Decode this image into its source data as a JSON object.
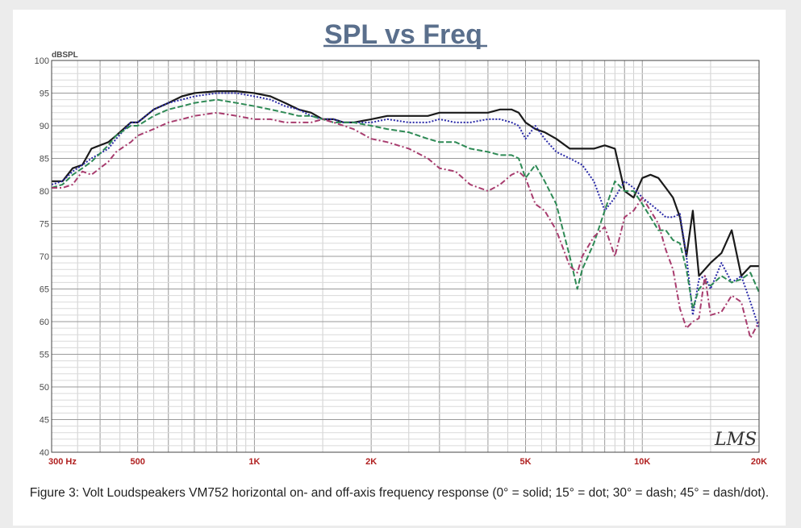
{
  "caption": "Figure 3: Volt Loudspeakers VM752 horizontal on- and off-axis frequency response (0° = solid; 15° = dot; 30° = dash; 45° = dash/dot).",
  "logo": "LMS",
  "chart_data": {
    "type": "line",
    "title": "SPL vs Freq",
    "ylabel": "dBSPL",
    "xlabel": "",
    "x_scale": "log",
    "xlim": [
      300,
      20000
    ],
    "ylim": [
      40,
      100
    ],
    "grid": true,
    "y_ticks": [
      40,
      45,
      50,
      55,
      60,
      65,
      70,
      75,
      80,
      85,
      90,
      95,
      100
    ],
    "x_tick_labels": [
      {
        "value": 300,
        "label": "300 Hz"
      },
      {
        "value": 500,
        "label": "500"
      },
      {
        "value": 1000,
        "label": "1K"
      },
      {
        "value": 2000,
        "label": "2K"
      },
      {
        "value": 5000,
        "label": "5K"
      },
      {
        "value": 10000,
        "label": "10K"
      },
      {
        "value": 20000,
        "label": "20K"
      }
    ],
    "series": [
      {
        "name": "0°",
        "color": "#1a1a1a",
        "style": "solid",
        "points": [
          [
            300,
            81.5
          ],
          [
            320,
            81.5
          ],
          [
            340,
            83.5
          ],
          [
            360,
            84
          ],
          [
            380,
            86.5
          ],
          [
            420,
            87.5
          ],
          [
            440,
            88.5
          ],
          [
            480,
            90.5
          ],
          [
            500,
            90.5
          ],
          [
            550,
            92.5
          ],
          [
            600,
            93.5
          ],
          [
            650,
            94.5
          ],
          [
            700,
            95
          ],
          [
            800,
            95.3
          ],
          [
            900,
            95.3
          ],
          [
            1000,
            95
          ],
          [
            1100,
            94.5
          ],
          [
            1200,
            93.5
          ],
          [
            1300,
            92.5
          ],
          [
            1400,
            92
          ],
          [
            1500,
            91
          ],
          [
            1600,
            91
          ],
          [
            1700,
            90.5
          ],
          [
            1800,
            90.5
          ],
          [
            2000,
            91
          ],
          [
            2200,
            91.5
          ],
          [
            2500,
            91.5
          ],
          [
            2800,
            91.5
          ],
          [
            3000,
            92
          ],
          [
            3300,
            92
          ],
          [
            3600,
            92
          ],
          [
            4000,
            92
          ],
          [
            4300,
            92.5
          ],
          [
            4600,
            92.5
          ],
          [
            4800,
            92
          ],
          [
            5000,
            90.5
          ],
          [
            5300,
            89.5
          ],
          [
            5600,
            89
          ],
          [
            6000,
            88
          ],
          [
            6500,
            86.5
          ],
          [
            7000,
            86.5
          ],
          [
            7500,
            86.5
          ],
          [
            8000,
            87
          ],
          [
            8500,
            86.5
          ],
          [
            9000,
            80
          ],
          [
            9500,
            79
          ],
          [
            10000,
            82
          ],
          [
            10500,
            82.5
          ],
          [
            11000,
            82
          ],
          [
            11500,
            80.5
          ],
          [
            12000,
            79
          ],
          [
            12500,
            76
          ],
          [
            13000,
            70
          ],
          [
            13500,
            77
          ],
          [
            14000,
            67
          ],
          [
            15000,
            69
          ],
          [
            16000,
            70.5
          ],
          [
            17000,
            74
          ],
          [
            18000,
            67
          ],
          [
            19000,
            68.5
          ],
          [
            20000,
            68.5
          ]
        ]
      },
      {
        "name": "15°",
        "color": "#2a2aa8",
        "style": "dot",
        "points": [
          [
            300,
            81
          ],
          [
            320,
            81.5
          ],
          [
            340,
            83
          ],
          [
            360,
            84
          ],
          [
            380,
            85
          ],
          [
            420,
            86.5
          ],
          [
            440,
            88
          ],
          [
            480,
            90.5
          ],
          [
            500,
            90.5
          ],
          [
            550,
            92.5
          ],
          [
            600,
            93.5
          ],
          [
            650,
            94
          ],
          [
            700,
            94.5
          ],
          [
            800,
            95
          ],
          [
            900,
            95
          ],
          [
            1000,
            94.5
          ],
          [
            1100,
            94
          ],
          [
            1200,
            93
          ],
          [
            1300,
            92.5
          ],
          [
            1400,
            91.5
          ],
          [
            1500,
            91
          ],
          [
            1600,
            91
          ],
          [
            1700,
            90.5
          ],
          [
            1800,
            90.5
          ],
          [
            2000,
            90.5
          ],
          [
            2200,
            91
          ],
          [
            2500,
            90.5
          ],
          [
            2800,
            90.5
          ],
          [
            3000,
            91
          ],
          [
            3300,
            90.5
          ],
          [
            3600,
            90.5
          ],
          [
            4000,
            91
          ],
          [
            4300,
            91
          ],
          [
            4600,
            90.5
          ],
          [
            4800,
            90
          ],
          [
            5000,
            88
          ],
          [
            5300,
            90
          ],
          [
            5600,
            88
          ],
          [
            6000,
            86
          ],
          [
            6500,
            85
          ],
          [
            7000,
            84
          ],
          [
            7500,
            81.5
          ],
          [
            8000,
            77
          ],
          [
            8500,
            79
          ],
          [
            9000,
            81.5
          ],
          [
            9500,
            80.5
          ],
          [
            10000,
            79
          ],
          [
            10500,
            78
          ],
          [
            11000,
            77
          ],
          [
            11500,
            76
          ],
          [
            12000,
            76
          ],
          [
            12500,
            76.5
          ],
          [
            13000,
            70
          ],
          [
            13500,
            61
          ],
          [
            14000,
            66.5
          ],
          [
            14500,
            67
          ],
          [
            15000,
            65
          ],
          [
            16000,
            69
          ],
          [
            17000,
            66
          ],
          [
            18000,
            67
          ],
          [
            19000,
            63
          ],
          [
            20000,
            59
          ]
        ]
      },
      {
        "name": "30°",
        "color": "#2e8a55",
        "style": "dash",
        "points": [
          [
            300,
            80.5
          ],
          [
            320,
            81
          ],
          [
            340,
            82.5
          ],
          [
            360,
            83.5
          ],
          [
            380,
            84.5
          ],
          [
            420,
            87
          ],
          [
            440,
            88.5
          ],
          [
            480,
            90
          ],
          [
            500,
            90
          ],
          [
            550,
            91.5
          ],
          [
            600,
            92.5
          ],
          [
            650,
            93
          ],
          [
            700,
            93.5
          ],
          [
            800,
            94
          ],
          [
            900,
            93.5
          ],
          [
            1000,
            93
          ],
          [
            1100,
            92.5
          ],
          [
            1200,
            92
          ],
          [
            1300,
            91.5
          ],
          [
            1400,
            91.5
          ],
          [
            1500,
            91
          ],
          [
            1600,
            90.5
          ],
          [
            1700,
            90.5
          ],
          [
            1800,
            90.5
          ],
          [
            2000,
            90
          ],
          [
            2200,
            89.5
          ],
          [
            2500,
            89
          ],
          [
            2800,
            88
          ],
          [
            3000,
            87.5
          ],
          [
            3300,
            87.5
          ],
          [
            3600,
            86.5
          ],
          [
            4000,
            86
          ],
          [
            4300,
            85.5
          ],
          [
            4600,
            85.5
          ],
          [
            4800,
            85
          ],
          [
            5000,
            82
          ],
          [
            5300,
            84
          ],
          [
            5600,
            81.5
          ],
          [
            6000,
            78
          ],
          [
            6500,
            70
          ],
          [
            6800,
            65
          ],
          [
            7000,
            68
          ],
          [
            7500,
            72
          ],
          [
            8000,
            77
          ],
          [
            8500,
            81.5
          ],
          [
            9000,
            80
          ],
          [
            9500,
            80
          ],
          [
            10000,
            78
          ],
          [
            10500,
            76
          ],
          [
            11000,
            74
          ],
          [
            11500,
            74
          ],
          [
            12000,
            72.5
          ],
          [
            12500,
            72
          ],
          [
            13000,
            68
          ],
          [
            13500,
            62
          ],
          [
            14000,
            65
          ],
          [
            14500,
            66
          ],
          [
            15000,
            65.5
          ],
          [
            16000,
            67
          ],
          [
            17000,
            66
          ],
          [
            18000,
            66.5
          ],
          [
            19000,
            67.5
          ],
          [
            20000,
            64.5
          ]
        ]
      },
      {
        "name": "45°",
        "color": "#a83c6e",
        "style": "dashdot",
        "points": [
          [
            300,
            80.5
          ],
          [
            320,
            80.5
          ],
          [
            340,
            81
          ],
          [
            360,
            83
          ],
          [
            380,
            82.5
          ],
          [
            420,
            84.5
          ],
          [
            440,
            86
          ],
          [
            480,
            87.5
          ],
          [
            500,
            88.5
          ],
          [
            550,
            89.5
          ],
          [
            600,
            90.5
          ],
          [
            650,
            91
          ],
          [
            700,
            91.5
          ],
          [
            800,
            92
          ],
          [
            900,
            91.5
          ],
          [
            1000,
            91
          ],
          [
            1100,
            91
          ],
          [
            1200,
            90.5
          ],
          [
            1300,
            90.5
          ],
          [
            1400,
            90.5
          ],
          [
            1500,
            91
          ],
          [
            1600,
            90.5
          ],
          [
            1700,
            90
          ],
          [
            1800,
            89.5
          ],
          [
            2000,
            88
          ],
          [
            2200,
            87.5
          ],
          [
            2500,
            86.5
          ],
          [
            2800,
            85
          ],
          [
            3000,
            83.5
          ],
          [
            3300,
            83
          ],
          [
            3600,
            81
          ],
          [
            4000,
            80
          ],
          [
            4300,
            81
          ],
          [
            4600,
            82.5
          ],
          [
            4800,
            83
          ],
          [
            5000,
            82
          ],
          [
            5300,
            78
          ],
          [
            5600,
            77
          ],
          [
            6000,
            74
          ],
          [
            6500,
            68.5
          ],
          [
            6800,
            67.5
          ],
          [
            7000,
            70
          ],
          [
            7500,
            73
          ],
          [
            8000,
            74.5
          ],
          [
            8500,
            70
          ],
          [
            9000,
            76
          ],
          [
            9500,
            77
          ],
          [
            10000,
            79
          ],
          [
            10500,
            77
          ],
          [
            11000,
            75
          ],
          [
            11500,
            71
          ],
          [
            12000,
            68
          ],
          [
            12500,
            62
          ],
          [
            13000,
            59
          ],
          [
            13500,
            60
          ],
          [
            14000,
            60.5
          ],
          [
            14500,
            67
          ],
          [
            15000,
            61
          ],
          [
            16000,
            61.5
          ],
          [
            17000,
            64
          ],
          [
            18000,
            63
          ],
          [
            19000,
            57.5
          ],
          [
            20000,
            60
          ]
        ]
      }
    ]
  }
}
